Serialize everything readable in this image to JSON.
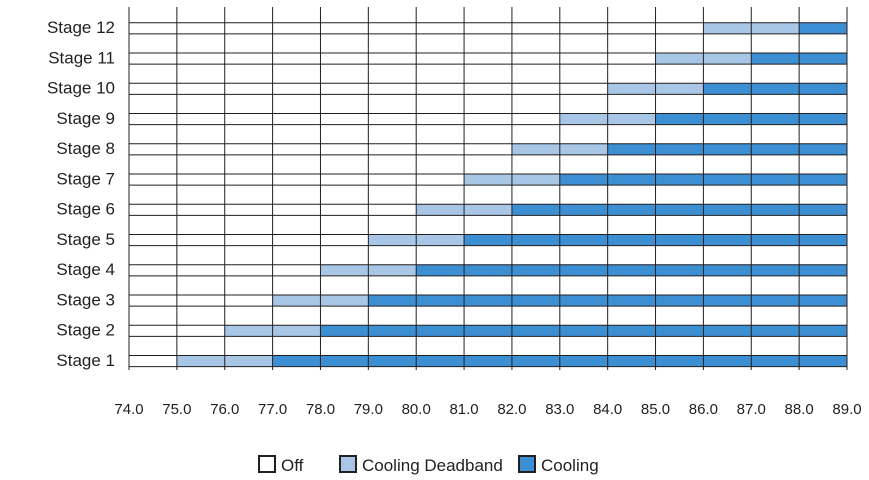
{
  "chart_data": {
    "type": "bar",
    "orientation": "horizontal",
    "stacked": true,
    "x_ticks": [
      "74.0",
      "75.0",
      "76.0",
      "77.0",
      "78.0",
      "79.0",
      "80.0",
      "81.0",
      "82.0",
      "83.0",
      "84.0",
      "85.0",
      "86.0",
      "87.0",
      "88.0",
      "89.0"
    ],
    "xlim": [
      74.0,
      89.0
    ],
    "categories": [
      "Stage 12",
      "Stage 11",
      "Stage 10",
      "Stage 9",
      "Stage 8",
      "Stage 7",
      "Stage 6",
      "Stage 5",
      "Stage 4",
      "Stage 3",
      "Stage 2",
      "Stage 1"
    ],
    "series": [
      {
        "name": "Cooling Deadband",
        "color": "#a8c6e6",
        "ranges": [
          [
            86.0,
            88.0
          ],
          [
            85.0,
            87.0
          ],
          [
            84.0,
            86.0
          ],
          [
            83.0,
            85.0
          ],
          [
            82.0,
            84.0
          ],
          [
            81.0,
            83.0
          ],
          [
            80.0,
            82.0
          ],
          [
            79.0,
            81.0
          ],
          [
            78.0,
            80.0
          ],
          [
            77.0,
            79.0
          ],
          [
            76.0,
            78.0
          ],
          [
            75.0,
            77.0
          ]
        ]
      },
      {
        "name": "Cooling",
        "color": "#3d8fd4",
        "ranges": [
          [
            88.0,
            89.0
          ],
          [
            87.0,
            89.0
          ],
          [
            86.0,
            89.0
          ],
          [
            85.0,
            89.0
          ],
          [
            84.0,
            89.0
          ],
          [
            83.0,
            89.0
          ],
          [
            82.0,
            89.0
          ],
          [
            81.0,
            89.0
          ],
          [
            80.0,
            89.0
          ],
          [
            79.0,
            89.0
          ],
          [
            78.0,
            89.0
          ],
          [
            77.0,
            89.0
          ]
        ]
      }
    ],
    "legend": {
      "position": "bottom",
      "items": [
        {
          "label": "Off",
          "color": "#ffffff"
        },
        {
          "label": "Cooling Deadband",
          "color": "#a8c6e6"
        },
        {
          "label": "Cooling",
          "color": "#3d8fd4"
        }
      ]
    },
    "grid": true,
    "line_color": "#231f20"
  }
}
